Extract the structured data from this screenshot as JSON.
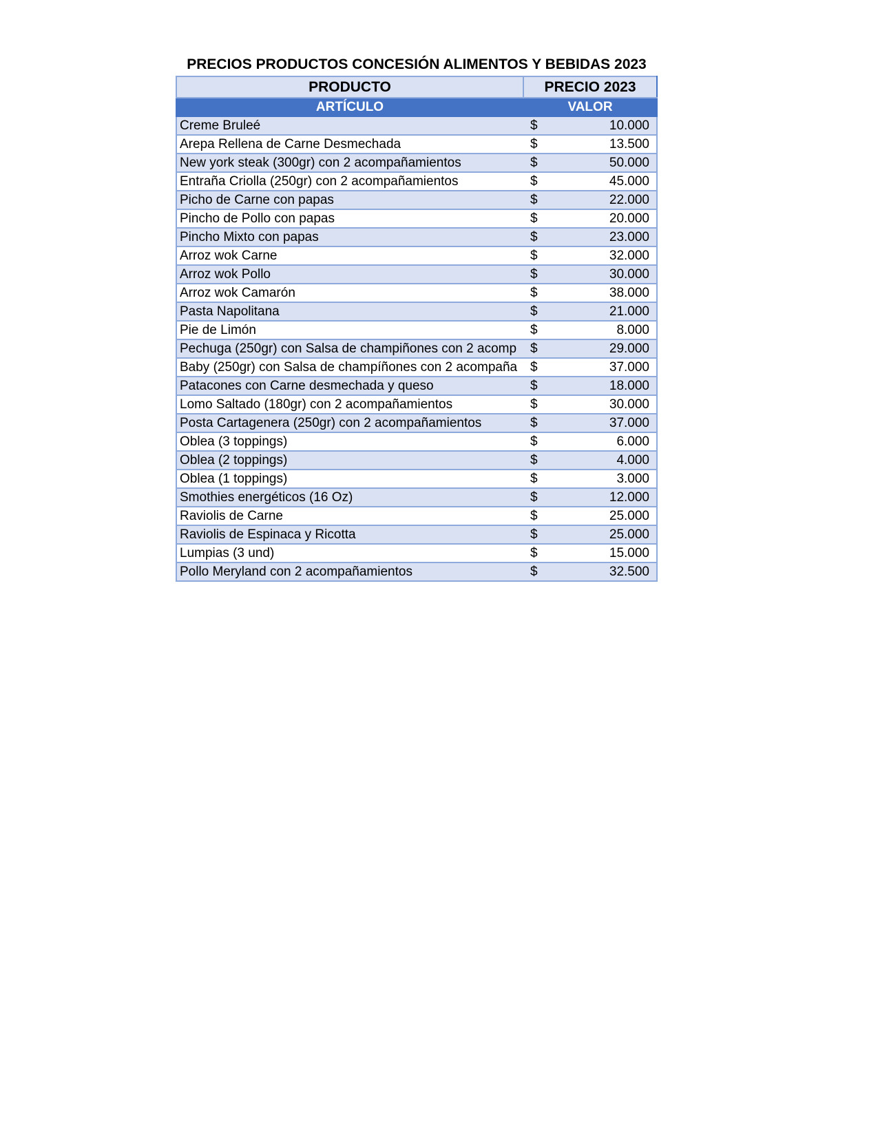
{
  "title": "PRECIOS PRODUCTOS CONCESIÓN ALIMENTOS Y BEBIDAS 2023",
  "header": {
    "product": "PRODUCTO",
    "price": "PRECIO 2023"
  },
  "subheader": {
    "article": "ARTÍCULO",
    "value": "VALOR"
  },
  "currency": "$",
  "colors": {
    "header_fill": "#D9E1F2",
    "subheader_fill": "#4472C4",
    "border": "#8EA9DB"
  },
  "rows": [
    {
      "item": "Creme Bruleé",
      "price": "10.000"
    },
    {
      "item": "Arepa Rellena de Carne Desmechada",
      "price": "13.500"
    },
    {
      "item": "New york steak (300gr) con 2 acompañamientos",
      "price": "50.000"
    },
    {
      "item": "Entraña Criolla (250gr) con 2 acompañamientos",
      "price": "45.000"
    },
    {
      "item": "Picho de Carne con papas",
      "price": "22.000"
    },
    {
      "item": "Pincho de Pollo con papas",
      "price": "20.000"
    },
    {
      "item": "Pincho Mixto con papas",
      "price": "23.000"
    },
    {
      "item": "Arroz wok Carne",
      "price": "32.000"
    },
    {
      "item": "Arroz wok Pollo",
      "price": "30.000"
    },
    {
      "item": "Arroz wok Camarón",
      "price": "38.000"
    },
    {
      "item": "Pasta Napolitana",
      "price": "21.000"
    },
    {
      "item": "Pie de Limón",
      "price": "8.000"
    },
    {
      "item": "Pechuga (250gr) con Salsa de champiñones con 2 acomp",
      "price": "29.000"
    },
    {
      "item": "Baby (250gr) con Salsa de champíñones con 2 acompaña",
      "price": "37.000"
    },
    {
      "item": "Patacones con Carne desmechada y queso",
      "price": "18.000"
    },
    {
      "item": "Lomo Saltado (180gr) con 2 acompañamientos",
      "price": "30.000"
    },
    {
      "item": "Posta Cartagenera (250gr) con 2 acompañamientos",
      "price": "37.000"
    },
    {
      "item": "Oblea (3 toppings)",
      "price": "6.000"
    },
    {
      "item": "Oblea (2 toppings)",
      "price": "4.000"
    },
    {
      "item": "Oblea (1 toppings)",
      "price": "3.000"
    },
    {
      "item": "Smothies energéticos (16 Oz)",
      "price": "12.000"
    },
    {
      "item": "Raviolis de Carne",
      "price": "25.000"
    },
    {
      "item": "Raviolis de Espinaca y Ricotta",
      "price": "25.000"
    },
    {
      "item": "Lumpias (3 und)",
      "price": "15.000"
    },
    {
      "item": "Pollo Meryland con 2 acompañamientos",
      "price": "32.500"
    }
  ]
}
